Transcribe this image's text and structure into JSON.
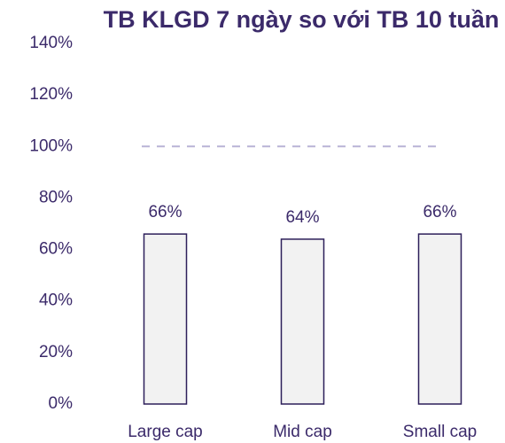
{
  "chart_data": {
    "type": "bar",
    "title": "TB KLGD 7 ngày so với TB 10 tuần",
    "categories": [
      "Large cap",
      "Mid cap",
      "Small cap"
    ],
    "values": [
      66,
      64,
      66
    ],
    "value_labels": [
      "66%",
      "64%",
      "66%"
    ],
    "color": "#f2f2f2",
    "ylim": [
      0,
      140
    ],
    "yticks": [
      {
        "value": 0,
        "label": "0%"
      },
      {
        "value": 20,
        "label": "20%"
      },
      {
        "value": 40,
        "label": "40%"
      },
      {
        "value": 60,
        "label": "60%"
      },
      {
        "value": 80,
        "label": "80%"
      },
      {
        "value": 100,
        "label": "100%"
      },
      {
        "value": 120,
        "label": "120%"
      },
      {
        "value": 140,
        "label": "140%"
      }
    ],
    "reference_line": 100,
    "grid": false
  }
}
